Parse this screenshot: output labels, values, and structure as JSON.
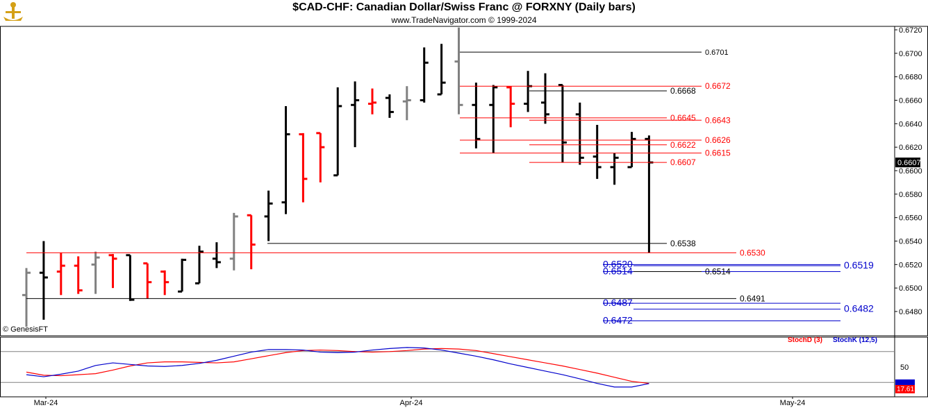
{
  "header": {
    "title": "$CAD-CHF:  Canadian Dollar/Swiss Franc @ FORXNY  (Daily bars)",
    "subtitle": "www.TradeNavigator.com © 1999-2024",
    "credit": "© GenesisFT"
  },
  "chart_data": {
    "type": "ohlc",
    "instrument": "$CAD-CHF",
    "price_axis": {
      "ylim": [
        0.6467,
        0.6725
      ],
      "ticks": [
        "0.6480",
        "0.6500",
        "0.6520",
        "0.6540",
        "0.6560",
        "0.6580",
        "0.6600",
        "0.6620",
        "0.6640",
        "0.6660",
        "0.6680",
        "0.6700",
        "0.6720"
      ],
      "last_price": "0.6607"
    },
    "date_axis": {
      "ticks": [
        "Mar-24",
        "Apr-24",
        "May-24"
      ]
    },
    "bar_colors": {
      "up": "#000000",
      "down": "#ff0000",
      "neutral": "#808080"
    },
    "bars": [
      {
        "o": 0.6494,
        "h": 0.6517,
        "l": 0.6467,
        "c": 0.6513,
        "d": "neutral"
      },
      {
        "o": 0.6513,
        "h": 0.654,
        "l": 0.6473,
        "c": 0.6509,
        "d": "up"
      },
      {
        "o": 0.6514,
        "h": 0.653,
        "l": 0.6494,
        "c": 0.6519,
        "d": "down"
      },
      {
        "o": 0.6519,
        "h": 0.6527,
        "l": 0.6495,
        "c": 0.6498,
        "d": "down"
      },
      {
        "o": 0.652,
        "h": 0.6531,
        "l": 0.6495,
        "c": 0.6526,
        "d": "neutral"
      },
      {
        "o": 0.6528,
        "h": 0.6529,
        "l": 0.65,
        "c": 0.6525,
        "d": "down"
      },
      {
        "o": 0.6528,
        "h": 0.6528,
        "l": 0.6489,
        "c": 0.649,
        "d": "up"
      },
      {
        "o": 0.6521,
        "h": 0.6521,
        "l": 0.6491,
        "c": 0.6505,
        "d": "down"
      },
      {
        "o": 0.6514,
        "h": 0.6515,
        "l": 0.6494,
        "c": 0.6505,
        "d": "down"
      },
      {
        "o": 0.6497,
        "h": 0.6525,
        "l": 0.6497,
        "c": 0.6524,
        "d": "up"
      },
      {
        "o": 0.6504,
        "h": 0.6536,
        "l": 0.6504,
        "c": 0.6531,
        "d": "up"
      },
      {
        "o": 0.6525,
        "h": 0.6539,
        "l": 0.6517,
        "c": 0.6522,
        "d": "up"
      },
      {
        "o": 0.6525,
        "h": 0.6564,
        "l": 0.6515,
        "c": 0.6561,
        "d": "neutral"
      },
      {
        "o": 0.6562,
        "h": 0.6562,
        "l": 0.6516,
        "c": 0.6537,
        "d": "down"
      },
      {
        "o": 0.6561,
        "h": 0.6583,
        "l": 0.654,
        "c": 0.6572,
        "d": "up"
      },
      {
        "o": 0.6573,
        "h": 0.6655,
        "l": 0.6563,
        "c": 0.6631,
        "d": "up"
      },
      {
        "o": 0.6631,
        "h": 0.6632,
        "l": 0.6573,
        "c": 0.6593,
        "d": "down"
      },
      {
        "o": 0.6632,
        "h": 0.6632,
        "l": 0.659,
        "c": 0.662,
        "d": "down"
      },
      {
        "o": 0.6596,
        "h": 0.6671,
        "l": 0.6596,
        "c": 0.6655,
        "d": "up"
      },
      {
        "o": 0.6656,
        "h": 0.6676,
        "l": 0.662,
        "c": 0.666,
        "d": "up"
      },
      {
        "o": 0.6657,
        "h": 0.667,
        "l": 0.6648,
        "c": 0.6658,
        "d": "down"
      },
      {
        "o": 0.6662,
        "h": 0.6665,
        "l": 0.6645,
        "c": 0.665,
        "d": "up"
      },
      {
        "o": 0.6659,
        "h": 0.6672,
        "l": 0.6643,
        "c": 0.666,
        "d": "neutral"
      },
      {
        "o": 0.666,
        "h": 0.6705,
        "l": 0.6658,
        "c": 0.6692,
        "d": "up"
      },
      {
        "o": 0.6665,
        "h": 0.6708,
        "l": 0.6665,
        "c": 0.6675,
        "d": "up"
      },
      {
        "o": 0.6693,
        "h": 0.6722,
        "l": 0.6648,
        "c": 0.6656,
        "d": "neutral"
      },
      {
        "o": 0.6656,
        "h": 0.6675,
        "l": 0.6619,
        "c": 0.6627,
        "d": "up"
      },
      {
        "o": 0.6656,
        "h": 0.6673,
        "l": 0.6615,
        "c": 0.6671,
        "d": "up"
      },
      {
        "o": 0.6671,
        "h": 0.6672,
        "l": 0.6637,
        "c": 0.6657,
        "d": "down"
      },
      {
        "o": 0.6657,
        "h": 0.6685,
        "l": 0.665,
        "c": 0.6672,
        "d": "up"
      },
      {
        "o": 0.6658,
        "h": 0.6683,
        "l": 0.664,
        "c": 0.6648,
        "d": "up"
      },
      {
        "o": 0.6673,
        "h": 0.6673,
        "l": 0.6607,
        "c": 0.6624,
        "d": "up"
      },
      {
        "o": 0.6648,
        "h": 0.6658,
        "l": 0.6605,
        "c": 0.6611,
        "d": "up"
      },
      {
        "o": 0.6612,
        "h": 0.6639,
        "l": 0.6593,
        "c": 0.6603,
        "d": "up"
      },
      {
        "o": 0.6603,
        "h": 0.6615,
        "l": 0.6588,
        "c": 0.6611,
        "d": "up"
      },
      {
        "o": 0.6603,
        "h": 0.6633,
        "l": 0.6603,
        "c": 0.6627,
        "d": "up"
      },
      {
        "o": 0.6627,
        "h": 0.663,
        "l": 0.653,
        "c": 0.6607,
        "d": "up"
      }
    ],
    "levels": [
      {
        "value": 0.6701,
        "label": "0.6701",
        "color": "#000000"
      },
      {
        "value": 0.6672,
        "label": "0.6672",
        "color": "#ff0000"
      },
      {
        "value": 0.6668,
        "label": "0.6668",
        "color": "#000000"
      },
      {
        "value": 0.6645,
        "label": "0.6645",
        "color": "#ff0000"
      },
      {
        "value": 0.6643,
        "label": "0.6643",
        "color": "#ff0000"
      },
      {
        "value": 0.6626,
        "label": "0.6626",
        "color": "#ff0000"
      },
      {
        "value": 0.6622,
        "label": "0.6622",
        "color": "#ff0000"
      },
      {
        "value": 0.6615,
        "label": "0.6615",
        "color": "#ff0000"
      },
      {
        "value": 0.6607,
        "label": "0.6607",
        "color": "#ff0000"
      },
      {
        "value": 0.6538,
        "label": "0.6538",
        "color": "#000000"
      },
      {
        "value": 0.653,
        "label": "0.6530",
        "color": "#ff0000"
      },
      {
        "value": 0.652,
        "label": "0.6520",
        "color": "#0000cc"
      },
      {
        "value": 0.6519,
        "label": "0.6519",
        "color": "#0000cc"
      },
      {
        "value": 0.6514,
        "label": "0.6514",
        "color": "#0000cc"
      },
      {
        "value": 0.6514,
        "label": "0.6514",
        "color": "#000000"
      },
      {
        "value": 0.6491,
        "label": "0.6491",
        "color": "#000000"
      },
      {
        "value": 0.6487,
        "label": "0.6487",
        "color": "#0000cc"
      },
      {
        "value": 0.6482,
        "label": "0.6482",
        "color": "#0000cc"
      },
      {
        "value": 0.6472,
        "label": "0.6472",
        "color": "#0000cc"
      }
    ],
    "stochastic": {
      "legend": [
        {
          "name": "StochD (3)",
          "color": "#ff0000"
        },
        {
          "name": "StochK (12,5)",
          "color": "#0000cc"
        }
      ],
      "ylim": [
        0,
        100
      ],
      "axis_label": "50",
      "last_value": "17.61",
      "stochD": [
        40,
        34,
        33,
        35,
        37,
        44,
        52,
        58,
        60,
        60,
        59,
        58,
        60,
        66,
        72,
        78,
        82,
        83,
        82,
        80,
        79,
        80,
        82,
        85,
        86,
        85,
        82,
        76,
        70,
        64,
        58,
        52,
        45,
        38,
        30,
        22,
        18
      ],
      "stochK": [
        35,
        31,
        36,
        42,
        53,
        58,
        55,
        52,
        51,
        53,
        57,
        63,
        71,
        79,
        84,
        84,
        83,
        79,
        78,
        79,
        83,
        86,
        88,
        87,
        83,
        77,
        71,
        64,
        56,
        49,
        42,
        35,
        27,
        18,
        11,
        11,
        17.61
      ]
    }
  }
}
